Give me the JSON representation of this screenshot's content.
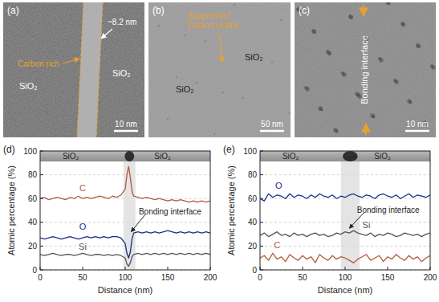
{
  "images": [
    {
      "label": "(a)",
      "left": "SiO₂",
      "right": "SiO₂",
      "band": "Carbon rich",
      "width": "~8.2 nm",
      "scale": "10 nm"
    },
    {
      "label": "(b)",
      "note": [
        "Suppressed",
        "Carbon cluster"
      ],
      "upper": "SiO₂",
      "lower": "SiO₂",
      "scale": "50 nm"
    },
    {
      "label": "(c)",
      "note": "Bonding interface",
      "scale": "10 nm"
    }
  ],
  "chart_data": [
    {
      "type": "line",
      "panel": "(d)",
      "x_label": "Distance (nm)",
      "y_label": "Atomic percentage (%)",
      "xlim": [
        0,
        200
      ],
      "ylim": [
        0,
        100
      ],
      "xticks": [
        0,
        50,
        100,
        150,
        200
      ],
      "yticks": [
        0,
        20,
        40,
        60,
        80,
        100
      ],
      "grid": true,
      "x": [
        0,
        5,
        10,
        15,
        20,
        25,
        30,
        35,
        40,
        45,
        50,
        55,
        60,
        65,
        70,
        75,
        80,
        85,
        90,
        95,
        100,
        102,
        104,
        106,
        108,
        110,
        115,
        120,
        125,
        130,
        135,
        140,
        145,
        150,
        155,
        160,
        165,
        170,
        175,
        180,
        185,
        190,
        195,
        200
      ],
      "series": [
        {
          "name": "C",
          "color": "#b35a3c",
          "values": [
            60,
            61,
            59,
            60,
            61,
            60,
            59,
            61,
            60,
            62,
            60,
            61,
            60,
            61,
            62,
            61,
            60,
            62,
            61,
            63,
            68,
            80,
            87,
            78,
            66,
            62,
            61,
            60,
            61,
            60,
            59,
            60,
            59,
            58,
            59,
            58,
            59,
            58,
            57,
            58,
            57,
            58,
            57,
            58
          ]
        },
        {
          "name": "O",
          "color": "#1c2c8c",
          "values": [
            27,
            26,
            27,
            28,
            27,
            26,
            27,
            28,
            27,
            26,
            27,
            28,
            27,
            28,
            27,
            28,
            27,
            28,
            28,
            27,
            22,
            14,
            10,
            15,
            26,
            31,
            32,
            31,
            32,
            31,
            32,
            31,
            32,
            33,
            32,
            31,
            32,
            31,
            32,
            31,
            32,
            31,
            32,
            31
          ]
        },
        {
          "name": "Si",
          "color": "#555555",
          "values": [
            13,
            12,
            13,
            14,
            13,
            12,
            13,
            13,
            12,
            13,
            14,
            13,
            12,
            13,
            13,
            12,
            13,
            12,
            13,
            12,
            10,
            5,
            3,
            6,
            11,
            13,
            14,
            13,
            14,
            13,
            14,
            13,
            14,
            13,
            14,
            13,
            14,
            13,
            14,
            13,
            14,
            13,
            14,
            13
          ]
        }
      ],
      "highlight": [
        98,
        112
      ],
      "strip_labels": [
        "SiO₂",
        "SiO₂"
      ],
      "annotation": "Bonding interface"
    },
    {
      "type": "line",
      "panel": "(e)",
      "x_label": "Distance (nm)",
      "y_label": "Atomic percentage (%)",
      "xlim": [
        0,
        200
      ],
      "ylim": [
        0,
        100
      ],
      "xticks": [
        0,
        50,
        100,
        150,
        200
      ],
      "yticks": [
        0,
        20,
        40,
        60,
        80,
        100
      ],
      "grid": true,
      "x": [
        0,
        5,
        10,
        15,
        20,
        25,
        30,
        35,
        40,
        45,
        50,
        55,
        60,
        65,
        70,
        75,
        80,
        85,
        90,
        95,
        100,
        105,
        110,
        115,
        120,
        125,
        130,
        135,
        140,
        145,
        150,
        155,
        160,
        165,
        170,
        175,
        180,
        185,
        190,
        195,
        200
      ],
      "series": [
        {
          "name": "C",
          "color": "#b35a3c",
          "values": [
            10,
            12,
            8,
            14,
            9,
            11,
            7,
            13,
            10,
            8,
            12,
            9,
            11,
            6,
            13,
            10,
            8,
            12,
            9,
            11,
            10,
            8,
            6,
            9,
            11,
            13,
            8,
            10,
            12,
            7,
            11,
            9,
            13,
            10,
            8,
            12,
            9,
            11,
            7,
            10,
            12
          ]
        },
        {
          "name": "O",
          "color": "#1c2c8c",
          "values": [
            60,
            58,
            64,
            61,
            63,
            62,
            60,
            64,
            61,
            63,
            62,
            60,
            63,
            61,
            64,
            62,
            61,
            63,
            60,
            62,
            61,
            63,
            64,
            62,
            61,
            63,
            62,
            60,
            63,
            64,
            62,
            61,
            63,
            60,
            62,
            64,
            61,
            63,
            62,
            61,
            63
          ]
        },
        {
          "name": "Si",
          "color": "#555555",
          "values": [
            29,
            31,
            28,
            30,
            32,
            29,
            30,
            28,
            31,
            29,
            30,
            28,
            30,
            31,
            29,
            30,
            28,
            29,
            31,
            30,
            32,
            31,
            33,
            31,
            30,
            29,
            31,
            28,
            30,
            29,
            31,
            30,
            28,
            29,
            31,
            30,
            29,
            30,
            28,
            30,
            31
          ]
        }
      ],
      "highlight": [
        95,
        117
      ],
      "strip_labels": [
        "SiO₂",
        "SiO₂"
      ],
      "annotation": "Bonding interface"
    }
  ]
}
